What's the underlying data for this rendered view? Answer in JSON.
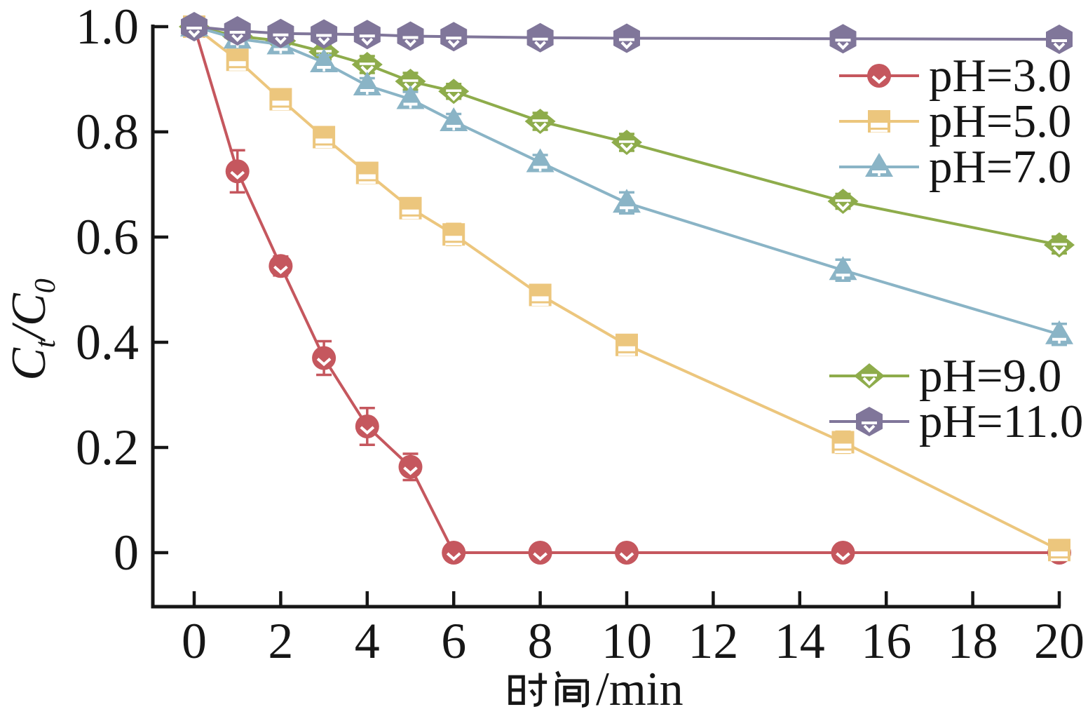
{
  "figure": {
    "background": "#ffffff",
    "axis_color": "#161616"
  },
  "axes": {
    "xlabel": "时间/min",
    "xlabel_cjk": "时间",
    "xlabel_latin": "/min",
    "ylabel": "Ct/C0",
    "ylabel_parts": {
      "c1": "C",
      "sub1": "t",
      "slash": "/",
      "c2": "C",
      "sub2": "0"
    },
    "x_tick_labels": [
      "0",
      "2",
      "4",
      "6",
      "8",
      "10",
      "12",
      "14",
      "16",
      "18",
      "20"
    ],
    "y_tick_labels": [
      "0",
      "0.2",
      "0.4",
      "0.6",
      "0.8",
      "1.0"
    ]
  },
  "legend": {
    "groups": [
      [
        0,
        1,
        2
      ],
      [
        3,
        4
      ]
    ]
  },
  "chart_data": {
    "type": "line",
    "x": [
      0,
      1,
      2,
      3,
      4,
      5,
      6,
      8,
      10,
      15,
      20
    ],
    "series": [
      {
        "name": "pH=3.0",
        "marker": "circle",
        "color": "#c5575e",
        "values": [
          1.0,
          0.725,
          0.545,
          0.37,
          0.24,
          0.163,
          0.0,
          0.0,
          0.0,
          0.0,
          0.0
        ],
        "errors": [
          0.012,
          0.04,
          0.018,
          0.032,
          0.035,
          0.025,
          0.006,
          0.006,
          0.006,
          0.006,
          0.006
        ]
      },
      {
        "name": "pH=5.0",
        "marker": "square",
        "color": "#ecc67d",
        "values": [
          1.0,
          0.937,
          0.862,
          0.79,
          0.722,
          0.655,
          0.605,
          0.49,
          0.395,
          0.21,
          0.005
        ],
        "errors": [
          0.01,
          0.012,
          0.012,
          0.014,
          0.016,
          0.015,
          0.02,
          0.014,
          0.016,
          0.02,
          0.012
        ]
      },
      {
        "name": "pH=7.0",
        "marker": "triangle",
        "color": "#8ab4c6",
        "values": [
          1.0,
          0.977,
          0.966,
          0.932,
          0.888,
          0.862,
          0.82,
          0.742,
          0.665,
          0.537,
          0.415
        ],
        "errors": [
          0.01,
          0.012,
          0.012,
          0.014,
          0.014,
          0.014,
          0.014,
          0.014,
          0.02,
          0.02,
          0.02
        ]
      },
      {
        "name": "pH=9.0",
        "marker": "diamond",
        "color": "#8eac4b",
        "values": [
          1.0,
          0.982,
          0.973,
          0.952,
          0.928,
          0.896,
          0.877,
          0.82,
          0.78,
          0.668,
          0.585
        ],
        "errors": [
          0.01,
          0.012,
          0.012,
          0.014,
          0.016,
          0.016,
          0.014,
          0.016,
          0.016,
          0.014,
          0.016
        ]
      },
      {
        "name": "pH=11.0",
        "marker": "hexagon",
        "color": "#80769a",
        "values": [
          1.0,
          0.992,
          0.987,
          0.986,
          0.985,
          0.982,
          0.981,
          0.979,
          0.978,
          0.977,
          0.976
        ],
        "errors": [
          0.01,
          0.012,
          0.012,
          0.012,
          0.012,
          0.013,
          0.013,
          0.013,
          0.013,
          0.015,
          0.013
        ]
      }
    ],
    "draw_order": [
      0,
      1,
      3,
      2,
      4
    ],
    "title": "",
    "xlabel": "时间/min",
    "ylabel": "Ct/C0",
    "xlim": [
      -0.96,
      20.03
    ],
    "ylim": [
      -0.103,
      1.004
    ],
    "x_ticks": [
      0,
      2,
      4,
      6,
      8,
      10,
      12,
      14,
      16,
      18,
      20
    ],
    "y_ticks": [
      0,
      0.2,
      0.4,
      0.6,
      0.8,
      1.0
    ],
    "grid": false,
    "legend_position": [
      "inside-top-right",
      "inside-middle-right"
    ],
    "error_bar_style": "colored caps outside marker, white bar over marker"
  }
}
